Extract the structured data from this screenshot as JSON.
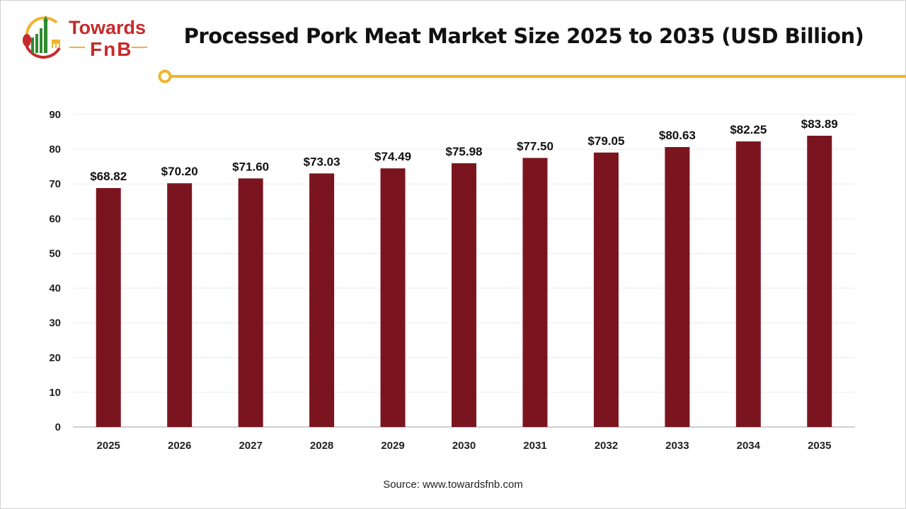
{
  "brand": {
    "line1": "Towards",
    "line2": "FnB"
  },
  "source": "Source: www.towardsfnb.com",
  "colors": {
    "bar": "#7a1520",
    "accent": "#f0b429",
    "brand": "#c62a2a"
  },
  "chart_data": {
    "type": "bar",
    "title": "Processed Pork Meat Market Size 2025 to 2035 (USD Billion)",
    "categories": [
      "2025",
      "2026",
      "2027",
      "2028",
      "2029",
      "2030",
      "2031",
      "2032",
      "2033",
      "2034",
      "2035"
    ],
    "values": [
      68.82,
      70.2,
      71.6,
      73.03,
      74.49,
      75.98,
      77.5,
      79.05,
      80.63,
      82.25,
      83.89
    ],
    "data_labels": [
      "$68.82",
      "$70.20",
      "$71.60",
      "$73.03",
      "$74.49",
      "$75.98",
      "$77.50",
      "$79.05",
      "$80.63",
      "$82.25",
      "$83.89"
    ],
    "xlabel": "",
    "ylabel": "",
    "ylim": [
      0,
      90
    ],
    "yticks": [
      "0",
      "10",
      "20",
      "30",
      "40",
      "50",
      "60",
      "70",
      "80",
      "90"
    ],
    "grid": true,
    "legend": "none"
  }
}
